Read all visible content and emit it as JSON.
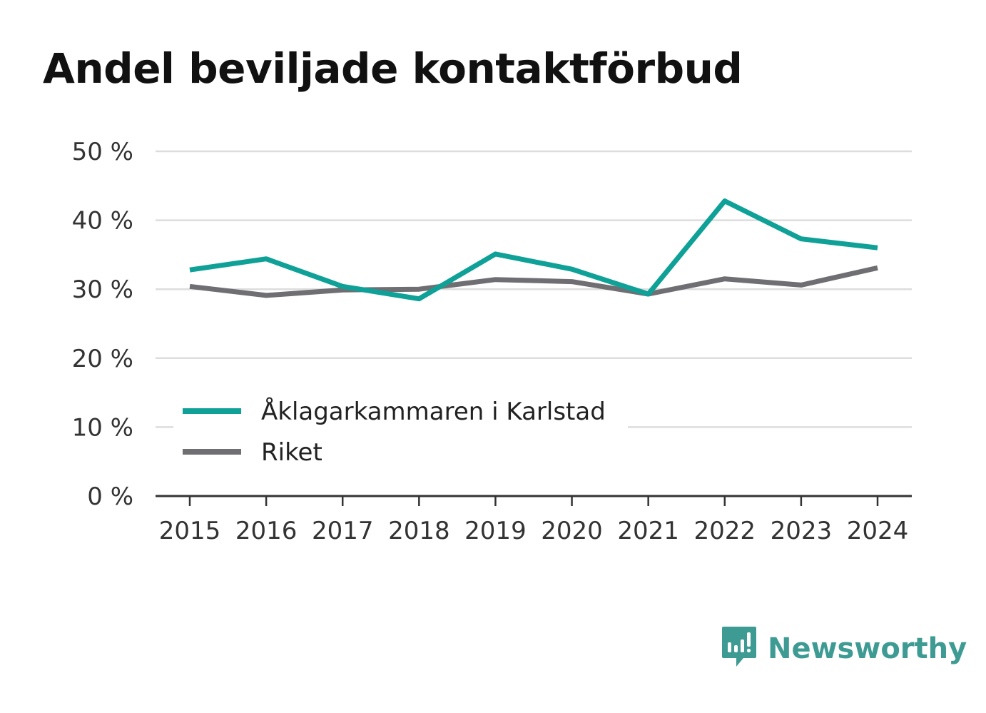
{
  "brand": {
    "name": "Newsworthy",
    "icon": "bar-chart-speech-bubble-icon",
    "color": "#3e9b93"
  },
  "chart_data": {
    "type": "line",
    "title": "Andel beviljade kontaktförbud",
    "x": [
      "2015",
      "2016",
      "2017",
      "2018",
      "2019",
      "2020",
      "2021",
      "2022",
      "2023",
      "2024"
    ],
    "ylim": [
      0,
      50
    ],
    "yticks": [
      0,
      10,
      20,
      30,
      40,
      50
    ],
    "ytick_labels": [
      "0 %",
      "10 %",
      "20 %",
      "30 %",
      "40 %",
      "50 %"
    ],
    "grid": true,
    "legend_position": "lower-left",
    "series": [
      {
        "name": "Åklagarkammaren i Karlstad",
        "color": "#0fa197",
        "values": [
          32.8,
          34.4,
          30.4,
          28.6,
          35.1,
          32.9,
          29.3,
          42.8,
          37.3,
          36.0
        ]
      },
      {
        "name": "Riket",
        "color": "#6f6f73",
        "values": [
          30.4,
          29.1,
          29.9,
          30.0,
          31.4,
          31.1,
          29.3,
          31.5,
          30.6,
          33.1
        ]
      }
    ]
  }
}
